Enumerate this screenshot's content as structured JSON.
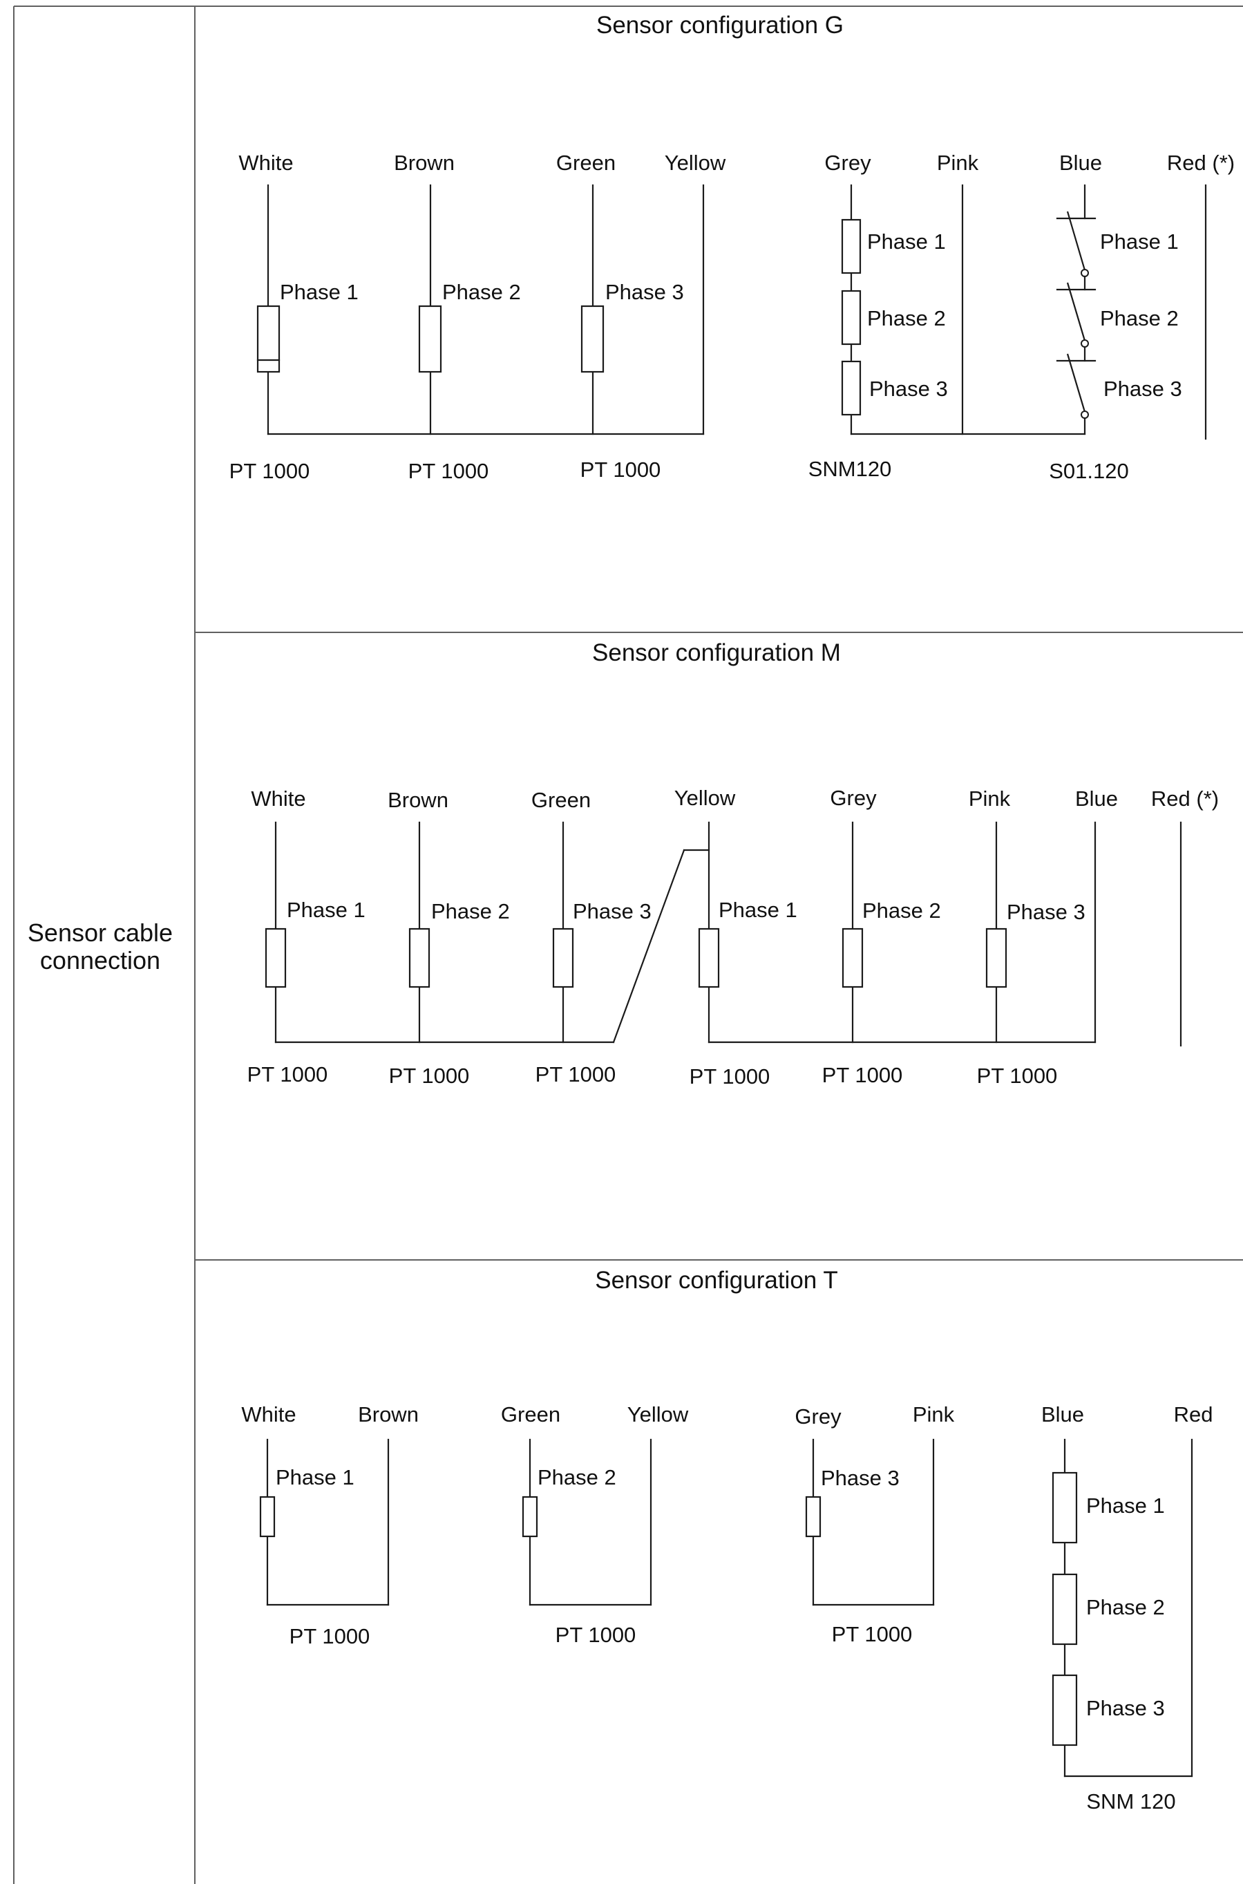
{
  "row_label": {
    "line1": "Sensor cable",
    "line2": "connection"
  },
  "panels": {
    "G": {
      "title": "Sensor configuration G",
      "wires": [
        "White",
        "Brown",
        "Green",
        "Yellow",
        "Grey",
        "Pink",
        "Blue",
        "Red (*)"
      ],
      "phases": [
        "Phase 1",
        "Phase 2",
        "Phase 3",
        "Phase 1",
        "Phase 2",
        "Phase 3",
        "Phase 1",
        "Phase 2",
        "Phase 3"
      ],
      "sensors": [
        "PT 1000",
        "PT 1000",
        "PT 1000",
        "SNM120",
        "S01.120"
      ]
    },
    "M": {
      "title": "Sensor configuration M",
      "wires": [
        "White",
        "Brown",
        "Green",
        "Yellow",
        "Grey",
        "Pink",
        "Blue",
        "Red (*)"
      ],
      "phases": [
        "Phase 1",
        "Phase 2",
        "Phase 3",
        "Phase 1",
        "Phase 2",
        "Phase 3"
      ],
      "sensors": [
        "PT 1000",
        "PT 1000",
        "PT 1000",
        "PT 1000",
        "PT 1000",
        "PT 1000"
      ]
    },
    "T": {
      "title": "Sensor configuration T",
      "wires": [
        "White",
        "Brown",
        "Green",
        "Yellow",
        "Grey",
        "Pink",
        "Blue",
        "Red"
      ],
      "phases": [
        "Phase 1",
        "Phase 2",
        "Phase 3",
        "Phase 1",
        "Phase 2",
        "Phase 3"
      ],
      "sensors": [
        "PT 1000",
        "PT 1000",
        "PT 1000",
        "SNM 120"
      ]
    }
  }
}
